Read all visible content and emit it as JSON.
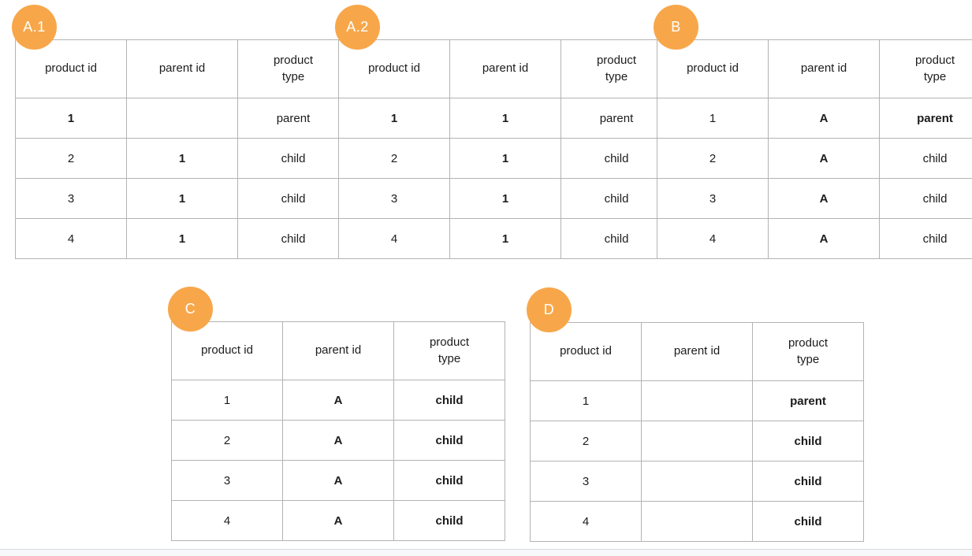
{
  "page": {
    "badge_color": "#F7A74A",
    "badge_text_color": "#ffffff",
    "table_border_color": "#b3b3b3",
    "background_color": "#ffffff"
  },
  "tables": [
    {
      "label": "A.1",
      "headers": [
        [
          "product id"
        ],
        [
          "parent id"
        ],
        [
          "product",
          "type"
        ]
      ],
      "rows": [
        [
          {
            "text": "1",
            "bold": true
          },
          {
            "text": "",
            "bold": false
          },
          {
            "text": "parent",
            "bold": false
          }
        ],
        [
          {
            "text": "2",
            "bold": false
          },
          {
            "text": "1",
            "bold": true
          },
          {
            "text": "child",
            "bold": false
          }
        ],
        [
          {
            "text": "3",
            "bold": false
          },
          {
            "text": "1",
            "bold": true
          },
          {
            "text": "child",
            "bold": false
          }
        ],
        [
          {
            "text": "4",
            "bold": false
          },
          {
            "text": "1",
            "bold": true
          },
          {
            "text": "child",
            "bold": false
          }
        ]
      ]
    },
    {
      "label": "A.2",
      "headers": [
        [
          "product id"
        ],
        [
          "parent id"
        ],
        [
          "product",
          "type"
        ]
      ],
      "rows": [
        [
          {
            "text": "1",
            "bold": true
          },
          {
            "text": "1",
            "bold": true
          },
          {
            "text": "parent",
            "bold": false
          }
        ],
        [
          {
            "text": "2",
            "bold": false
          },
          {
            "text": "1",
            "bold": true
          },
          {
            "text": "child",
            "bold": false
          }
        ],
        [
          {
            "text": "3",
            "bold": false
          },
          {
            "text": "1",
            "bold": true
          },
          {
            "text": "child",
            "bold": false
          }
        ],
        [
          {
            "text": "4",
            "bold": false
          },
          {
            "text": "1",
            "bold": true
          },
          {
            "text": "child",
            "bold": false
          }
        ]
      ]
    },
    {
      "label": "B",
      "headers": [
        [
          "product id"
        ],
        [
          "parent id"
        ],
        [
          "product",
          "type"
        ]
      ],
      "rows": [
        [
          {
            "text": "1",
            "bold": false
          },
          {
            "text": "A",
            "bold": true
          },
          {
            "text": "parent",
            "bold": true
          }
        ],
        [
          {
            "text": "2",
            "bold": false
          },
          {
            "text": "A",
            "bold": true
          },
          {
            "text": "child",
            "bold": false
          }
        ],
        [
          {
            "text": "3",
            "bold": false
          },
          {
            "text": "A",
            "bold": true
          },
          {
            "text": "child",
            "bold": false
          }
        ],
        [
          {
            "text": "4",
            "bold": false
          },
          {
            "text": "A",
            "bold": true
          },
          {
            "text": "child",
            "bold": false
          }
        ]
      ]
    },
    {
      "label": "C",
      "headers": [
        [
          "product id"
        ],
        [
          "parent id"
        ],
        [
          "product",
          "type"
        ]
      ],
      "rows": [
        [
          {
            "text": "1",
            "bold": false
          },
          {
            "text": "A",
            "bold": true
          },
          {
            "text": "child",
            "bold": true
          }
        ],
        [
          {
            "text": "2",
            "bold": false
          },
          {
            "text": "A",
            "bold": true
          },
          {
            "text": "child",
            "bold": true
          }
        ],
        [
          {
            "text": "3",
            "bold": false
          },
          {
            "text": "A",
            "bold": true
          },
          {
            "text": "child",
            "bold": true
          }
        ],
        [
          {
            "text": "4",
            "bold": false
          },
          {
            "text": "A",
            "bold": true
          },
          {
            "text": "child",
            "bold": true
          }
        ]
      ]
    },
    {
      "label": "D",
      "headers": [
        [
          "product id"
        ],
        [
          "parent id"
        ],
        [
          "product",
          "type"
        ]
      ],
      "rows": [
        [
          {
            "text": "1",
            "bold": false
          },
          {
            "text": "",
            "bold": false
          },
          {
            "text": "parent",
            "bold": true
          }
        ],
        [
          {
            "text": "2",
            "bold": false
          },
          {
            "text": "",
            "bold": false
          },
          {
            "text": "child",
            "bold": true
          }
        ],
        [
          {
            "text": "3",
            "bold": false
          },
          {
            "text": "",
            "bold": false
          },
          {
            "text": "child",
            "bold": true
          }
        ],
        [
          {
            "text": "4",
            "bold": false
          },
          {
            "text": "",
            "bold": false
          },
          {
            "text": "child",
            "bold": true
          }
        ]
      ]
    }
  ]
}
